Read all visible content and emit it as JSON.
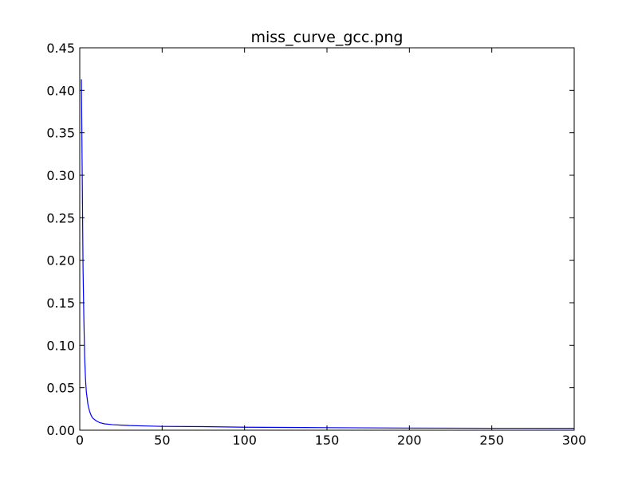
{
  "chart_data": {
    "type": "line",
    "title": "miss_curve_gcc.png",
    "xlabel": "",
    "ylabel": "",
    "xlim": [
      0,
      300
    ],
    "ylim": [
      0,
      0.45
    ],
    "xticks": [
      0,
      50,
      100,
      150,
      200,
      250,
      300
    ],
    "yticks": [
      0.0,
      0.05,
      0.1,
      0.15,
      0.2,
      0.25,
      0.3,
      0.35,
      0.4,
      0.45
    ],
    "xtick_labels": [
      "0",
      "50",
      "100",
      "150",
      "200",
      "250",
      "300"
    ],
    "ytick_labels": [
      "0.00",
      "0.05",
      "0.10",
      "0.15",
      "0.20",
      "0.25",
      "0.30",
      "0.35",
      "0.40",
      "0.45"
    ],
    "grid": false,
    "series": [
      {
        "color": "#0000ff",
        "x": [
          1,
          1.5,
          2,
          2.5,
          3,
          3.5,
          4,
          5,
          6,
          7,
          8,
          10,
          12,
          15,
          20,
          25,
          30,
          40,
          50,
          75,
          100,
          150,
          200,
          250,
          300
        ],
        "y": [
          0.413,
          0.3,
          0.19,
          0.13,
          0.085,
          0.06,
          0.045,
          0.03,
          0.022,
          0.017,
          0.014,
          0.011,
          0.009,
          0.0075,
          0.0065,
          0.006,
          0.0055,
          0.005,
          0.0045,
          0.0042,
          0.0035,
          0.003,
          0.0025,
          0.0023,
          0.0022
        ]
      }
    ]
  }
}
